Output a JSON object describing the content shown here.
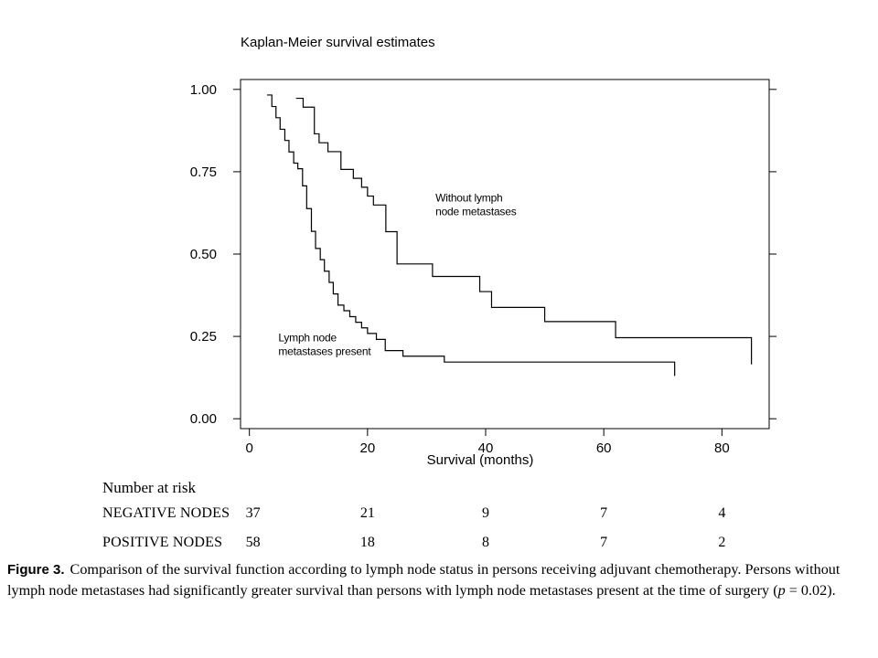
{
  "chart_data": {
    "type": "line",
    "title": "Kaplan-Meier survival estimates",
    "xlabel": "Survival (months)",
    "ylabel": "",
    "xlim": [
      -1.5,
      88
    ],
    "ylim": [
      -0.03,
      1.03
    ],
    "x_ticks": [
      0,
      20,
      40,
      60,
      80
    ],
    "y_ticks": [
      0,
      0.25,
      0.5,
      0.75,
      1.0
    ],
    "x_tick_labels": [
      "0",
      "20",
      "40",
      "60",
      "80"
    ],
    "y_tick_labels": [
      "0.00",
      "0.25",
      "0.50",
      "0.75",
      "1.00"
    ],
    "grid": false,
    "series": [
      {
        "name": "Without lymph node metastases",
        "step_x": [
          7.9,
          9.1,
          11.0,
          11.8,
          13.3,
          15.5,
          17.6,
          19.0,
          20.0,
          21.0,
          23.1,
          25.0,
          31.0,
          39.0,
          41.0,
          50.0,
          62.0,
          85.0
        ],
        "step_y": [
          0.973,
          0.946,
          0.865,
          0.838,
          0.811,
          0.757,
          0.73,
          0.703,
          0.676,
          0.649,
          0.568,
          0.47,
          0.432,
          0.386,
          0.338,
          0.295,
          0.246,
          0.246
        ],
        "censor_end": [
          85.0,
          0.165
        ]
      },
      {
        "name": "Lymph node metastases present",
        "step_x": [
          3.0,
          3.8,
          4.5,
          5.2,
          6.0,
          6.7,
          7.5,
          8.2,
          9.0,
          9.7,
          10.5,
          11.2,
          12.0,
          12.7,
          13.5,
          14.2,
          15.0,
          16.0,
          17.0,
          18.0,
          19.0,
          20.0,
          21.5,
          23.0,
          26.0,
          33.0,
          72.0
        ],
        "step_y": [
          0.983,
          0.948,
          0.914,
          0.879,
          0.845,
          0.81,
          0.776,
          0.759,
          0.707,
          0.638,
          0.569,
          0.517,
          0.483,
          0.448,
          0.414,
          0.379,
          0.345,
          0.328,
          0.31,
          0.293,
          0.276,
          0.259,
          0.241,
          0.207,
          0.19,
          0.172,
          0.172
        ],
        "censor_end": [
          72.0,
          0.13
        ]
      }
    ],
    "annotations": [
      {
        "lines": [
          "Without lymph",
          "node metastases"
        ],
        "x": 31.5,
        "y": 0.66
      },
      {
        "lines": [
          "Lymph node",
          "metastases present"
        ],
        "x": 4.9,
        "y": 0.235
      }
    ]
  },
  "risk_table": {
    "title": "Number at risk",
    "rows": [
      {
        "label": "NEGATIVE NODES",
        "values": [
          "37",
          "21",
          "9",
          "7",
          "4"
        ]
      },
      {
        "label": "POSITIVE NODES",
        "values": [
          "58",
          "18",
          "8",
          "7",
          "2"
        ]
      }
    ]
  },
  "caption": {
    "label": "Figure 3.",
    "text_before": "Comparison of the survival function according to lymph node status in persons receiving adjuvant chemotherapy. Persons without lymph node metastases had significantly greater survival than persons with lymph node metastases present at the time of surgery (",
    "p_symbol": "p",
    "text_after": " = 0.02)."
  }
}
